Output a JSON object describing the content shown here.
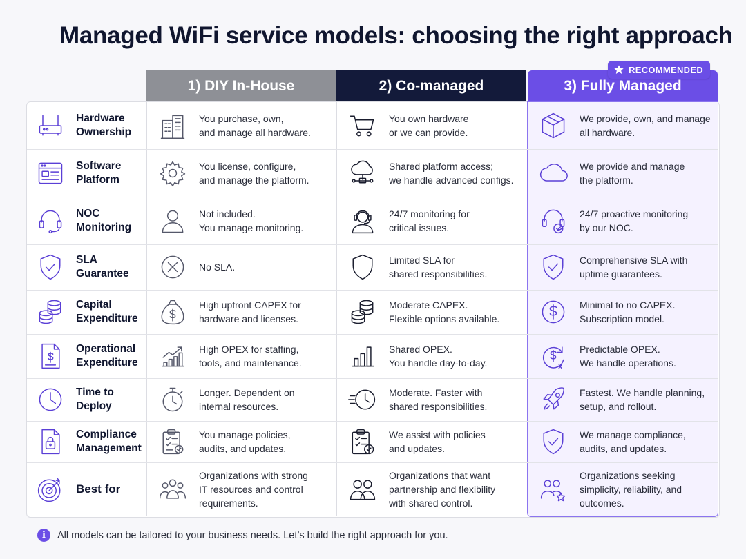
{
  "title": "Managed WiFi service models: choosing the right approach",
  "badge": "RECOMMENDED",
  "columns": [
    "1) DIY In-House",
    "2) Co-managed",
    "3) Fully Managed"
  ],
  "colors": {
    "diy": "#8e9096",
    "co": "#131a3a",
    "full": "#6b4ee6",
    "accent": "#6b4ee6"
  },
  "rows": [
    {
      "label": "Hardware\nOwnership",
      "icon": "router-icon",
      "cells": [
        {
          "icon": "building-icon",
          "text": "You purchase, own,\nand manage all hardware."
        },
        {
          "icon": "cart-icon",
          "text": "You own hardware\nor we can provide."
        },
        {
          "icon": "box-icon",
          "text": "We provide, own, and manage\nall hardware."
        }
      ]
    },
    {
      "label": "Software\nPlatform",
      "icon": "software-icon",
      "cells": [
        {
          "icon": "gear-icon",
          "text": "You license, configure,\nand manage the platform."
        },
        {
          "icon": "cloud-network-icon",
          "text": "Shared platform access;\nwe handle advanced configs."
        },
        {
          "icon": "cloud-icon",
          "text": "We provide and manage\nthe platform."
        }
      ]
    },
    {
      "label": "NOC\nMonitoring",
      "icon": "headset-icon",
      "cells": [
        {
          "icon": "person-icon",
          "text": "Not included.\nYou manage monitoring."
        },
        {
          "icon": "agent-icon",
          "text": "24/7 monitoring for\ncritical issues."
        },
        {
          "icon": "headset-check-icon",
          "text": "24/7 proactive monitoring\nby our NOC."
        }
      ]
    },
    {
      "label": "SLA\nGuarantee",
      "icon": "shield-check-icon",
      "cells": [
        {
          "icon": "x-circle-icon",
          "text": "No SLA."
        },
        {
          "icon": "shield-icon",
          "text": "Limited SLA for\nshared responsibilities."
        },
        {
          "icon": "shield-check-icon",
          "text": "Comprehensive SLA with\nuptime guarantees."
        }
      ]
    },
    {
      "label": "Capital\nExpenditure",
      "icon": "coins-icon",
      "cells": [
        {
          "icon": "money-bag-icon",
          "text": "High upfront CAPEX for\nhardware and licenses."
        },
        {
          "icon": "coins-icon",
          "text": "Moderate CAPEX.\nFlexible options available."
        },
        {
          "icon": "dollar-circle-icon",
          "text": "Minimal to no CAPEX.\nSubscription model."
        }
      ]
    },
    {
      "label": "Operational\nExpenditure",
      "icon": "invoice-icon",
      "cells": [
        {
          "icon": "chart-up-icon",
          "text": "High OPEX for staffing,\ntools, and maintenance."
        },
        {
          "icon": "bar-chart-icon",
          "text": "Shared OPEX.\nYou handle day-to-day."
        },
        {
          "icon": "dollar-cycle-icon",
          "text": "Predictable OPEX.\nWe handle operations."
        }
      ]
    },
    {
      "label": "Time to\nDeploy",
      "icon": "clock-icon",
      "cells": [
        {
          "icon": "stopwatch-icon",
          "text": "Longer. Dependent on\ninternal resources."
        },
        {
          "icon": "fast-clock-icon",
          "text": "Moderate. Faster with\nshared responsibilities."
        },
        {
          "icon": "rocket-icon",
          "text": "Fastest. We handle planning,\nsetup, and rollout."
        }
      ]
    },
    {
      "label": "Compliance\nManagement",
      "icon": "lock-document-icon",
      "cells": [
        {
          "icon": "clipboard-icon",
          "text": "You manage policies,\naudits, and updates."
        },
        {
          "icon": "clipboard-check-icon",
          "text": "We assist with policies\nand updates."
        },
        {
          "icon": "shield-check-icon",
          "text": "We manage compliance,\naudits, and updates."
        }
      ]
    },
    {
      "label": "Best for",
      "icon": "target-icon",
      "cells": [
        {
          "icon": "group-icon",
          "text": "Organizations with strong\nIT resources and control\nrequirements."
        },
        {
          "icon": "pair-icon",
          "text": "Organizations that want\npartnership and flexibility\nwith shared control."
        },
        {
          "icon": "users-star-icon",
          "text": "Organizations seeking\nsimplicity, reliability, and\noutcomes."
        }
      ]
    }
  ],
  "footer": "All models can be tailored to your business needs. Let’s build the right approach for you."
}
